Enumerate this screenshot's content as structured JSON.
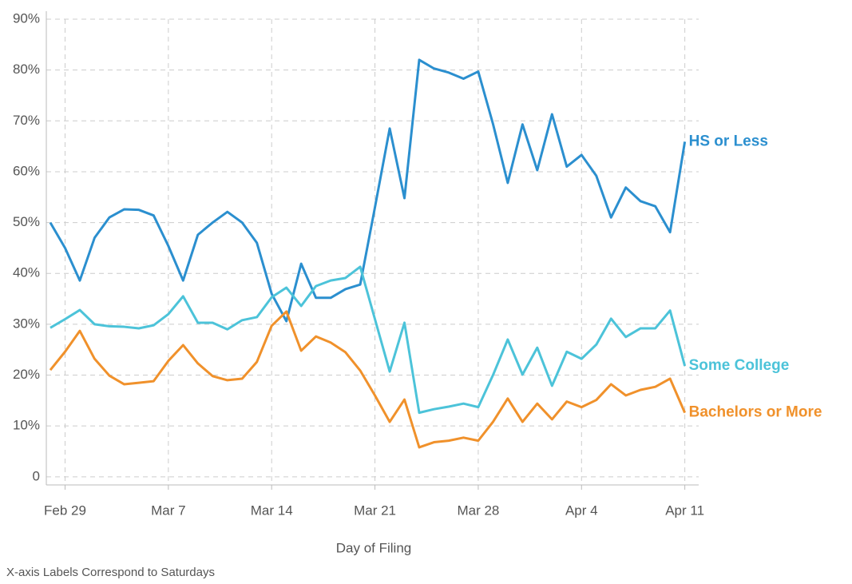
{
  "chart_data": {
    "type": "line",
    "x_label": "Day of Filing",
    "note": "X-axis Labels Correspond to Saturdays",
    "x": [
      "Feb 28",
      "Feb 29",
      "Mar 1",
      "Mar 2",
      "Mar 3",
      "Mar 4",
      "Mar 5",
      "Mar 6",
      "Mar 7",
      "Mar 8",
      "Mar 9",
      "Mar 10",
      "Mar 11",
      "Mar 12",
      "Mar 13",
      "Mar 14",
      "Mar 15",
      "Mar 16",
      "Mar 17",
      "Mar 18",
      "Mar 19",
      "Mar 20",
      "Mar 21",
      "Mar 22",
      "Mar 23",
      "Mar 24",
      "Mar 25",
      "Mar 26",
      "Mar 27",
      "Mar 28",
      "Mar 29",
      "Mar 30",
      "Mar 31",
      "Apr 1",
      "Apr 2",
      "Apr 3",
      "Apr 4",
      "Apr 5",
      "Apr 6",
      "Apr 7",
      "Apr 8",
      "Apr 9",
      "Apr 10",
      "Apr 11"
    ],
    "xticks": [
      "Feb 29",
      "Mar 7",
      "Mar 14",
      "Mar 21",
      "Mar 28",
      "Apr 4",
      "Apr 11"
    ],
    "ylim": [
      -1.6,
      90
    ],
    "yticks": [
      0,
      {
        "value": 10,
        "label": "10%"
      },
      {
        "value": 20,
        "label": "20%"
      },
      {
        "value": 30,
        "label": "30%"
      },
      {
        "value": 40,
        "label": "40%"
      },
      {
        "value": 50,
        "label": "50%"
      },
      {
        "value": 60,
        "label": "60%"
      },
      {
        "value": 70,
        "label": "70%"
      },
      {
        "value": 80,
        "label": "80%"
      },
      {
        "value": 90,
        "label": "90%"
      }
    ],
    "grid": true,
    "series": [
      {
        "name": "HS or Less",
        "color": "#2b8fcf",
        "values": [
          50,
          45,
          38.6,
          47,
          51,
          52.6,
          52.5,
          51.4,
          45.4,
          38.6,
          47.6,
          50,
          52.1,
          50,
          46,
          36,
          30.6,
          41.9,
          35.2,
          35.2,
          36.9,
          37.8,
          53,
          68.5,
          54.8,
          82,
          80.3,
          79.5,
          78.3,
          79.7,
          69.4,
          57.8,
          69.3,
          60.3,
          71.3,
          61,
          63.3,
          59.2,
          51,
          56.9,
          54.2,
          53.2,
          48.1,
          65.9
        ]
      },
      {
        "name": "Some College",
        "color": "#4cc3d9",
        "values": [
          29.3,
          31,
          32.8,
          30,
          29.6,
          29.5,
          29.2,
          29.8,
          32,
          35.5,
          30.3,
          30.3,
          29,
          30.8,
          31.4,
          35.3,
          37.2,
          33.6,
          37.5,
          38.6,
          39.1,
          41.3,
          31,
          20.7,
          30.3,
          12.6,
          13.3,
          13.8,
          14.4,
          13.7,
          20,
          27,
          20.1,
          25.4,
          17.9,
          24.6,
          23.2,
          26,
          31.1,
          27.5,
          29.2,
          29.2,
          32.7,
          21.8
        ]
      },
      {
        "name": "Bachelors or More",
        "color": "#f0912b",
        "values": [
          21,
          24.6,
          28.7,
          23.2,
          19.9,
          18.2,
          18.5,
          18.8,
          22.8,
          25.9,
          22.3,
          19.8,
          19,
          19.3,
          22.6,
          29.7,
          32.5,
          24.8,
          27.6,
          26.4,
          24.5,
          20.9,
          16,
          10.8,
          15.2,
          5.8,
          6.8,
          7.1,
          7.7,
          7.1,
          10.8,
          15.4,
          10.8,
          14.4,
          11.3,
          14.8,
          13.7,
          15.1,
          18.2,
          16,
          17.1,
          17.7,
          19.3,
          12.6
        ]
      }
    ]
  }
}
